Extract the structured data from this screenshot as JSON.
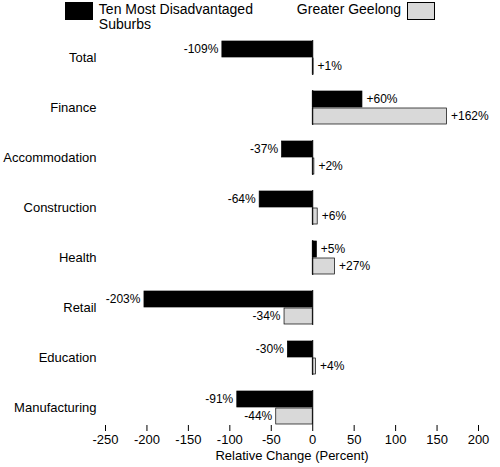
{
  "chart_data": {
    "type": "bar",
    "orientation": "horizontal",
    "categories": [
      "Total",
      "Finance",
      "Accommodation",
      "Construction",
      "Health",
      "Retail",
      "Education",
      "Manufacturing"
    ],
    "series": [
      {
        "name": "Ten Most Disadvantaged Suburbs",
        "color": "#000000",
        "values": [
          -109,
          60,
          -37,
          -64,
          5,
          -203,
          -30,
          -91
        ],
        "value_labels": [
          "-109%",
          "+60%",
          "-37%",
          "-64%",
          "+5%",
          "-203%",
          "-30%",
          "-91%"
        ]
      },
      {
        "name": "Greater Geelong",
        "color": "#d9d9d9",
        "values": [
          1,
          162,
          2,
          6,
          27,
          -34,
          4,
          -44
        ],
        "value_labels": [
          "+1%",
          "+162%",
          "+2%",
          "+6%",
          "+27%",
          "-34%",
          "+4%",
          "-44%"
        ]
      }
    ],
    "x_label": "Relative Change (Percent)",
    "xlim": [
      -250,
      200
    ],
    "xticks": [
      -250,
      -200,
      -150,
      -100,
      -50,
      0,
      50,
      100,
      150,
      200
    ],
    "data_labels": true,
    "legend": "top"
  }
}
